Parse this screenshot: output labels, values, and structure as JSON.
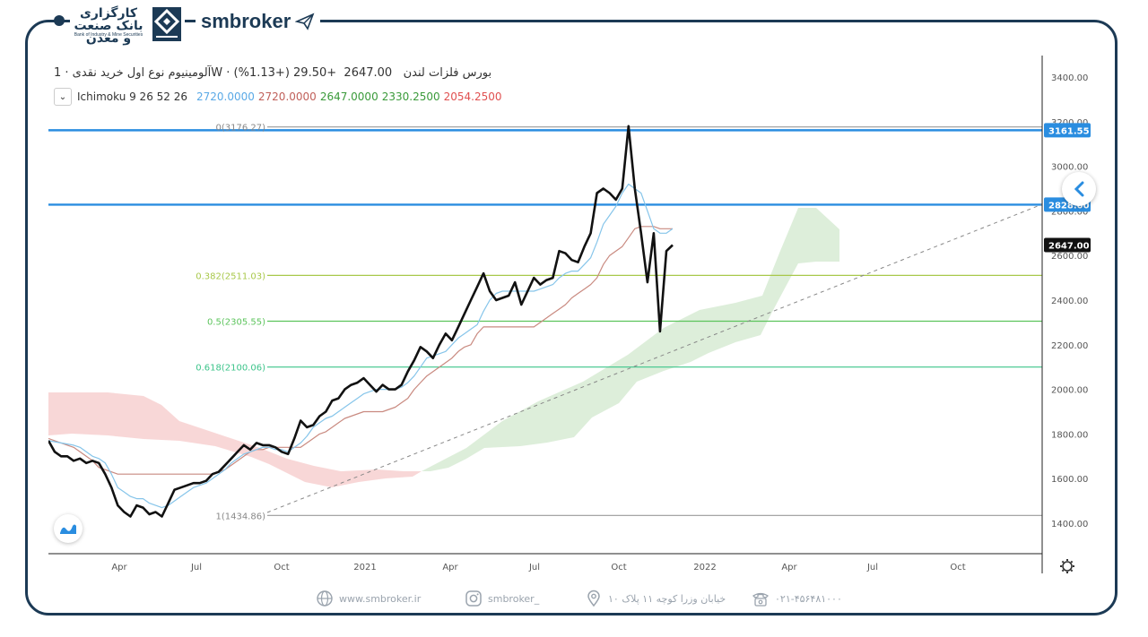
{
  "header": {
    "bank_name": "کارگزاری بانک صنعت و معدن",
    "bank_sub": "Bank of Industry & Mine Securities",
    "brand": "smbroker"
  },
  "legend": {
    "title": "آلومینیوم نوع اول خرید نقدی · 1W · بورس فلزات لندن",
    "price": "2647.00",
    "change": "+29.50 (+1.13%)",
    "collapse_icon": "chevron-down-icon",
    "ichimoku_label": "Ichimoku 9 26 52 26",
    "ichimoku_values": [
      {
        "value": "2720.0000",
        "color": "#5aa9e6"
      },
      {
        "value": "2720.0000",
        "color": "#c0605a"
      },
      {
        "value": "2647.0000",
        "color": "#3a9a3a"
      },
      {
        "value": "2330.2500",
        "color": "#3a9a3a"
      },
      {
        "value": "2054.2500",
        "color": "#e05050"
      }
    ]
  },
  "price_axis": {
    "ticks": [
      "3400.00",
      "3200.00",
      "3000.00",
      "2800.00",
      "2600.00",
      "2400.00",
      "2200.00",
      "2000.00",
      "1800.00",
      "1600.00",
      "1400.00"
    ],
    "highlight_labels": [
      {
        "text": "3161.55",
        "bg": "#2a8de0",
        "fg": "#ffffff",
        "price": 3161.55
      },
      {
        "text": "2828.00",
        "bg": "#2a8de0",
        "fg": "#ffffff",
        "price": 2828
      },
      {
        "text": "2647.00",
        "bg": "#111111",
        "fg": "#ffffff",
        "price": 2647
      }
    ]
  },
  "time_axis": {
    "labels": [
      "Apr",
      "Jul",
      "Oct",
      "2021",
      "Apr",
      "Jul",
      "Oct",
      "2022",
      "Apr",
      "Jul",
      "Oct"
    ]
  },
  "chart_data": {
    "type": "line",
    "title": "آلومینیوم نوع اول خرید نقدی · 1W · بورس فلزات لندن",
    "price_range": [
      1400,
      3400
    ],
    "fib_levels": [
      {
        "label": "0(3176.27)",
        "price": 3176.27,
        "color": "#999999"
      },
      {
        "label": "0.382(2511.03)",
        "price": 2511.03,
        "color": "#a8c84a"
      },
      {
        "label": "0.5(2305.55)",
        "price": 2305.55,
        "color": "#5cc45c"
      },
      {
        "label": "0.618(2100.06)",
        "price": 2100.06,
        "color": "#3cc48a"
      },
      {
        "label": "1(1434.86)",
        "price": 1434.86,
        "color": "#999999"
      }
    ],
    "horizontal_lines": [
      3161.55,
      2828
    ],
    "series": [
      {
        "name": "price",
        "color": "#111111",
        "values": [
          1770,
          1720,
          1700,
          1700,
          1680,
          1690,
          1670,
          1680,
          1670,
          1620,
          1560,
          1480,
          1450,
          1430,
          1480,
          1470,
          1440,
          1450,
          1430,
          1490,
          1550,
          1560,
          1570,
          1580,
          1580,
          1590,
          1620,
          1630,
          1660,
          1690,
          1720,
          1750,
          1730,
          1760,
          1750,
          1750,
          1740,
          1720,
          1710,
          1780,
          1860,
          1830,
          1840,
          1880,
          1900,
          1950,
          1960,
          2000,
          2020,
          2030,
          2050,
          2020,
          1990,
          2020,
          2000,
          2000,
          2020,
          2080,
          2130,
          2190,
          2170,
          2140,
          2200,
          2250,
          2220,
          2280,
          2340,
          2400,
          2460,
          2520,
          2440,
          2400,
          2410,
          2420,
          2480,
          2380,
          2440,
          2500,
          2470,
          2490,
          2500,
          2620,
          2610,
          2580,
          2570,
          2640,
          2700,
          2880,
          2900,
          2880,
          2850,
          2900,
          3180,
          2900,
          2700,
          2480,
          2700,
          2260,
          2620,
          2647
        ]
      },
      {
        "name": "tenkan",
        "color": "#86c5ea",
        "values": [
          1770,
          1765,
          1760,
          1755,
          1750,
          1740,
          1720,
          1700,
          1690,
          1670,
          1620,
          1560,
          1540,
          1520,
          1510,
          1510,
          1490,
          1480,
          1470,
          1480,
          1500,
          1520,
          1540,
          1560,
          1570,
          1580,
          1600,
          1620,
          1640,
          1670,
          1690,
          1710,
          1720,
          1730,
          1740,
          1740,
          1730,
          1730,
          1720,
          1740,
          1760,
          1790,
          1830,
          1850,
          1870,
          1880,
          1900,
          1920,
          1940,
          1960,
          1980,
          1990,
          2000,
          2000,
          2000,
          2000,
          2010,
          2030,
          2060,
          2100,
          2140,
          2150,
          2160,
          2170,
          2200,
          2230,
          2250,
          2270,
          2290,
          2350,
          2400,
          2430,
          2440,
          2440,
          2440,
          2440,
          2440,
          2440,
          2450,
          2460,
          2470,
          2500,
          2520,
          2530,
          2530,
          2560,
          2590,
          2660,
          2740,
          2780,
          2820,
          2880,
          2920,
          2900,
          2880,
          2800,
          2720,
          2700,
          2700,
          2720
        ]
      },
      {
        "name": "kijun",
        "color": "#c98a80",
        "values": [
          1780,
          1770,
          1760,
          1750,
          1740,
          1720,
          1700,
          1680,
          1650,
          1640,
          1630,
          1620,
          1620,
          1620,
          1620,
          1620,
          1620,
          1620,
          1620,
          1620,
          1620,
          1620,
          1620,
          1620,
          1620,
          1620,
          1620,
          1630,
          1640,
          1660,
          1680,
          1700,
          1720,
          1730,
          1730,
          1740,
          1740,
          1740,
          1740,
          1740,
          1740,
          1760,
          1780,
          1800,
          1810,
          1830,
          1850,
          1870,
          1880,
          1890,
          1900,
          1900,
          1900,
          1900,
          1910,
          1920,
          1940,
          1960,
          2000,
          2030,
          2060,
          2080,
          2100,
          2120,
          2140,
          2170,
          2190,
          2200,
          2250,
          2280,
          2280,
          2280,
          2280,
          2280,
          2280,
          2280,
          2280,
          2280,
          2300,
          2320,
          2340,
          2360,
          2380,
          2410,
          2430,
          2450,
          2470,
          2500,
          2560,
          2600,
          2620,
          2640,
          2680,
          2720,
          2730,
          2730,
          2730,
          2720,
          2720,
          2720
        ]
      }
    ]
  },
  "footer": {
    "website": "www.smbroker.ir",
    "instagram": "smbroker_",
    "address": "خیابان وزرا کوچه ۱۱ پلاک ۱۰",
    "phone": "۰۲۱-۴۵۶۴۸۱۰۰۰"
  }
}
